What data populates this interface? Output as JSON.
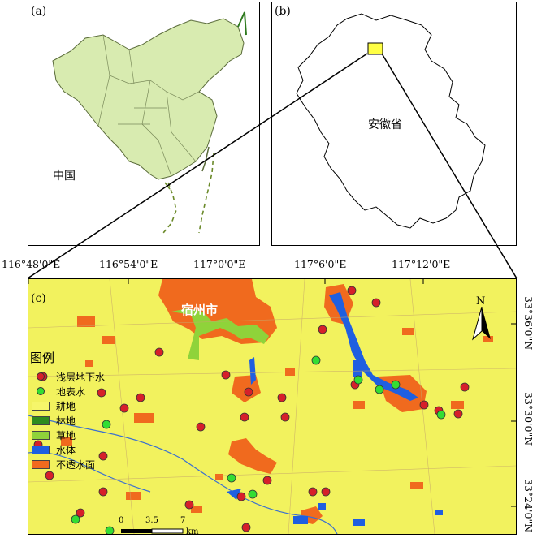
{
  "panels": {
    "a": {
      "label": "(a)",
      "region_label": "中国"
    },
    "b": {
      "label": "(b)",
      "region_label": "安徽省"
    },
    "c": {
      "label": "(c)",
      "city_label": "宿州市"
    }
  },
  "longitude_ticks": [
    "116°48'0\"E",
    "116°54'0\"E",
    "117°0'0\"E",
    "117°6'0\"E",
    "117°12'0\"E"
  ],
  "latitude_ticks": [
    "33°36'0\"N",
    "33°30'0\"N",
    "33°24'0\"N"
  ],
  "legend": {
    "title": "图例",
    "items": [
      {
        "label": "浅层地下水",
        "type": "point",
        "color": "#d6202a"
      },
      {
        "label": "地表水",
        "type": "point",
        "color": "#33dd33"
      },
      {
        "label": "耕地",
        "type": "area",
        "color": "#f6f66a"
      },
      {
        "label": "林地",
        "type": "area",
        "color": "#2e8b1e"
      },
      {
        "label": "草地",
        "type": "area",
        "color": "#8fd33a"
      },
      {
        "label": "水体",
        "type": "area",
        "color": "#1f5fe0"
      },
      {
        "label": "不透水面",
        "type": "area",
        "color": "#f06a1e"
      }
    ]
  },
  "scale_bar": {
    "ticks": [
      "0",
      "3.5",
      "7"
    ],
    "unit": "km"
  },
  "north_arrow": {
    "label": "N"
  },
  "colors": {
    "cropland": "#f2f25e",
    "impervious": "#f06a1e",
    "water": "#1f5fe0",
    "grass": "#8fd33a",
    "forest": "#2e8b1e",
    "china_fill": "#d8ebb0"
  }
}
